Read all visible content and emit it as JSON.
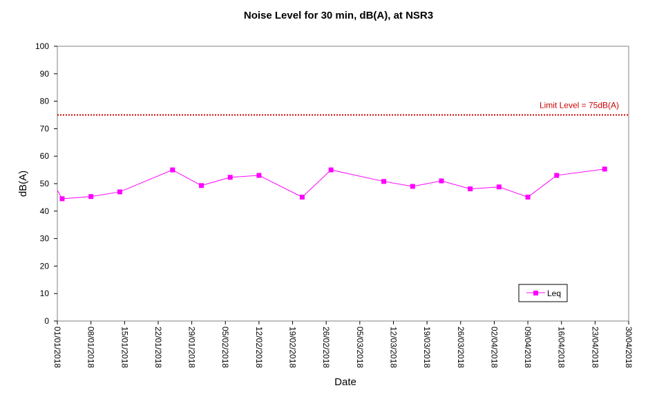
{
  "chart_data": {
    "type": "line",
    "title": "Noise Level for 30 min, dB(A), at NSR3",
    "xlabel": "Date",
    "ylabel": "dB(A)",
    "ylim": [
      0,
      100
    ],
    "yticks": [
      0,
      10,
      20,
      30,
      40,
      50,
      60,
      70,
      80,
      90,
      100
    ],
    "xlim": [
      "2018-01-01",
      "2018-04-30"
    ],
    "xtick_labels": [
      "01/01/2018",
      "08/01/2018",
      "15/01/2018",
      "22/01/2018",
      "29/01/2018",
      "05/02/2018",
      "12/02/2018",
      "19/02/2018",
      "26/02/2018",
      "05/03/2018",
      "12/03/2018",
      "19/03/2018",
      "26/03/2018",
      "02/04/2018",
      "09/04/2018",
      "16/04/2018",
      "23/04/2018",
      "30/04/2018"
    ],
    "xtick_dates": [
      "2018-01-01",
      "2018-01-08",
      "2018-01-15",
      "2018-01-22",
      "2018-01-29",
      "2018-02-05",
      "2018-02-12",
      "2018-02-19",
      "2018-02-26",
      "2018-03-05",
      "2018-03-12",
      "2018-03-19",
      "2018-03-26",
      "2018-04-02",
      "2018-04-09",
      "2018-04-16",
      "2018-04-23",
      "2018-04-30"
    ],
    "grid": false,
    "series": [
      {
        "name": "Leq",
        "color": "#ff00ff",
        "marker": "square",
        "x": [
          "2018-01-02",
          "2018-01-08",
          "2018-01-14",
          "2018-01-25",
          "2018-01-31",
          "2018-02-06",
          "2018-02-12",
          "2018-02-21",
          "2018-02-27",
          "2018-03-10",
          "2018-03-16",
          "2018-03-22",
          "2018-03-28",
          "2018-04-03",
          "2018-04-09",
          "2018-04-15",
          "2018-04-25"
        ],
        "y": [
          44.5,
          45.3,
          47.0,
          55.0,
          49.3,
          52.3,
          53.0,
          45.1,
          55.0,
          50.8,
          49.0,
          51.0,
          48.1,
          48.8,
          45.1,
          53.0,
          55.3
        ]
      }
    ],
    "limit": {
      "value": 75,
      "label": "Limit Level = 75dB(A)",
      "color": "#cc0000",
      "style": "dotted"
    },
    "legend": {
      "position": "bottom-right",
      "entries": [
        "Leq"
      ]
    }
  }
}
